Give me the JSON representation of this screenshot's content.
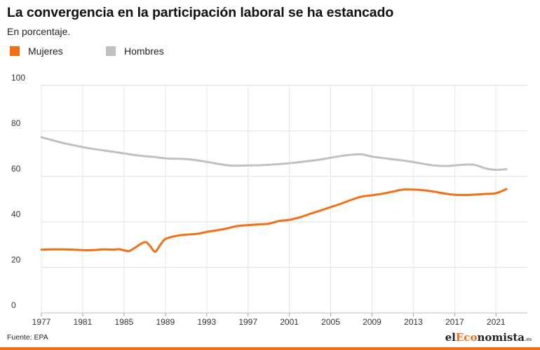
{
  "chart_data": {
    "type": "line",
    "title": "La convergencia en la participación laboral se ha estancado",
    "subtitle": "En porcentaje.",
    "xlabel": "",
    "ylabel": "",
    "xlim": [
      1977,
      2022
    ],
    "ylim": [
      0,
      100
    ],
    "yticks": [
      0,
      20,
      40,
      60,
      80,
      100
    ],
    "xticks": [
      1977,
      1981,
      1985,
      1989,
      1993,
      1997,
      2001,
      2005,
      2009,
      2013,
      2017,
      2021
    ],
    "grid": "horizontal",
    "legend_position": "top-left",
    "series": [
      {
        "name": "Mujeres",
        "color": "#f36f16",
        "x": [
          1977,
          1978,
          1979,
          1980,
          1981,
          1982,
          1983,
          1984,
          1984.5,
          1985,
          1985.5,
          1986,
          1987,
          1987.5,
          1988,
          1988.5,
          1989,
          1990,
          1991,
          1992,
          1993,
          1994,
          1995,
          1996,
          1997,
          1998,
          1999,
          2000,
          2001,
          2002,
          2003,
          2004,
          2005,
          2006,
          2007,
          2008,
          2009,
          2010,
          2011,
          2012,
          2013,
          2014,
          2015,
          2016,
          2017,
          2018,
          2019,
          2020,
          2021,
          2022
        ],
        "values": [
          27.8,
          27.9,
          27.9,
          27.8,
          27.6,
          27.6,
          27.9,
          27.8,
          28.0,
          27.5,
          27.2,
          28.5,
          31.1,
          29.5,
          26.9,
          29.8,
          32.5,
          33.8,
          34.4,
          34.7,
          35.6,
          36.3,
          37.2,
          38.2,
          38.6,
          38.9,
          39.2,
          40.4,
          40.9,
          42.0,
          43.5,
          45.0,
          46.5,
          48.0,
          49.7,
          51.1,
          51.7,
          52.4,
          53.3,
          54.2,
          54.2,
          53.9,
          53.3,
          52.5,
          51.9,
          51.8,
          52.0,
          52.3,
          52.6,
          54.4
        ]
      },
      {
        "name": "Hombres",
        "color": "#c0c0c0",
        "x": [
          1977,
          1978,
          1979,
          1980,
          1981,
          1982,
          1983,
          1984,
          1985,
          1986,
          1987,
          1988,
          1989,
          1990,
          1991,
          1992,
          1993,
          1994,
          1995,
          1996,
          1997,
          1998,
          1999,
          2000,
          2001,
          2002,
          2003,
          2004,
          2005,
          2006,
          2007,
          2008,
          2009,
          2010,
          2011,
          2012,
          2013,
          2014,
          2015,
          2016,
          2017,
          2018,
          2019,
          2020,
          2021,
          2022
        ],
        "values": [
          77.2,
          76.0,
          74.8,
          73.8,
          72.9,
          72.1,
          71.4,
          70.8,
          70.1,
          69.4,
          68.9,
          68.5,
          67.9,
          67.8,
          67.6,
          67.1,
          66.4,
          65.6,
          64.9,
          64.7,
          64.8,
          64.9,
          65.1,
          65.4,
          65.8,
          66.3,
          66.8,
          67.4,
          68.2,
          69.0,
          69.5,
          69.7,
          68.7,
          68.1,
          67.5,
          67.0,
          66.3,
          65.5,
          64.8,
          64.6,
          64.8,
          65.2,
          65.0,
          63.5,
          62.9,
          63.2
        ]
      }
    ]
  },
  "source": "Fuente: EPA",
  "brand": {
    "prefix": "el",
    "accent": "Eco",
    "suffix": "nomista",
    "tld": ".es"
  }
}
